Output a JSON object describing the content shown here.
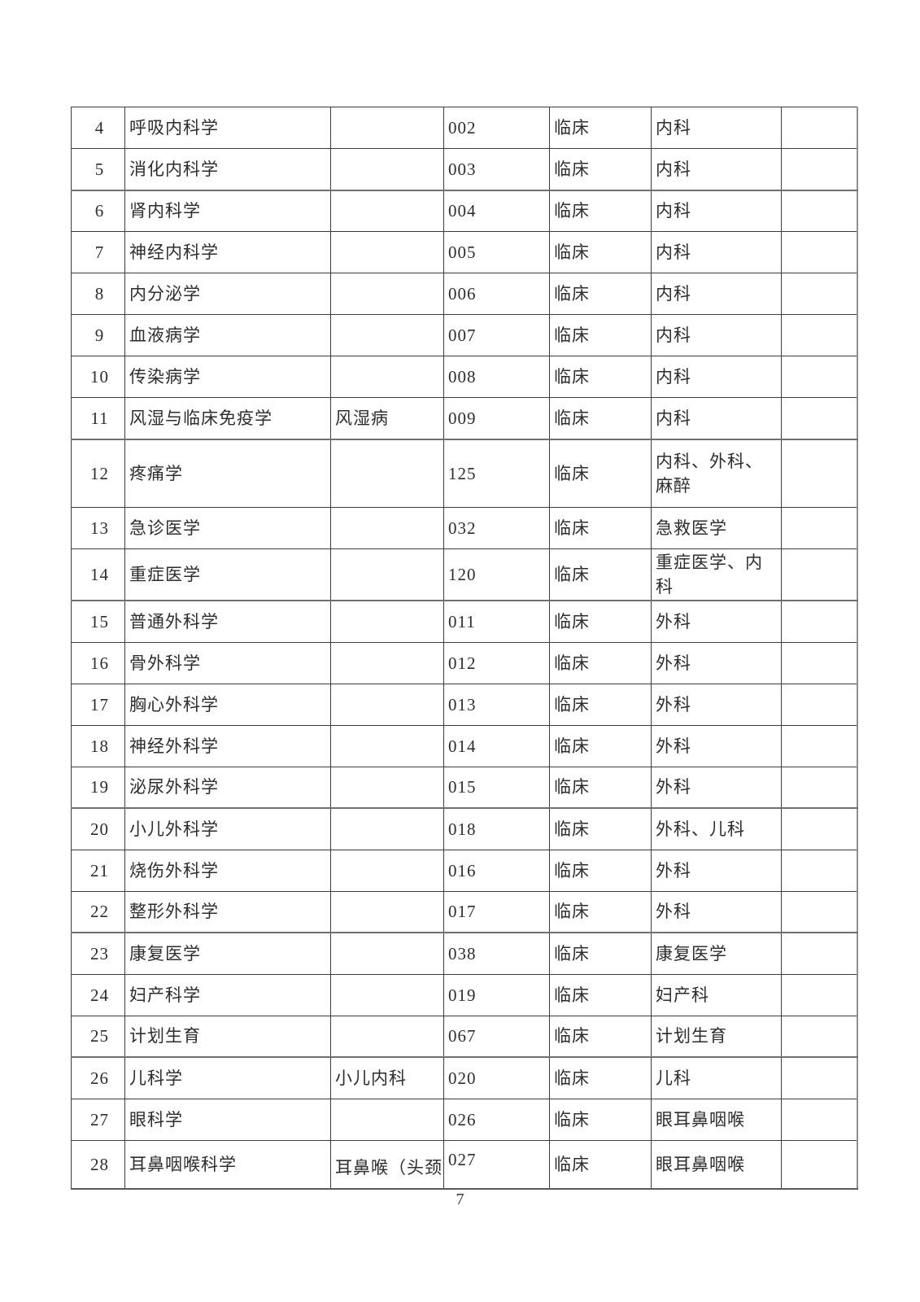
{
  "document": {
    "page_number": "7",
    "ink_color": "#2d2d2d",
    "grid_color": "#3c3c3c"
  },
  "table": {
    "rows": [
      {
        "no": "4",
        "name": "呼吸内科学",
        "alt_name": "",
        "code": "002",
        "category": "临床",
        "department": "内科",
        "note": ""
      },
      {
        "no": "5",
        "name": "消化内科学",
        "alt_name": "",
        "code": "003",
        "category": "临床",
        "department": "内科",
        "note": ""
      },
      {
        "no": "6",
        "name": "肾内科学",
        "alt_name": "",
        "code": "004",
        "category": "临床",
        "department": "内科",
        "note": ""
      },
      {
        "no": "7",
        "name": "神经内科学",
        "alt_name": "",
        "code": "005",
        "category": "临床",
        "department": "内科",
        "note": ""
      },
      {
        "no": "8",
        "name": "内分泌学",
        "alt_name": "",
        "code": "006",
        "category": "临床",
        "department": "内科",
        "note": ""
      },
      {
        "no": "9",
        "name": "血液病学",
        "alt_name": "",
        "code": "007",
        "category": "临床",
        "department": "内科",
        "note": ""
      },
      {
        "no": "10",
        "name": "传染病学",
        "alt_name": "",
        "code": "008",
        "category": "临床",
        "department": "内科",
        "note": ""
      },
      {
        "no": "11",
        "name": "风湿与临床免疫学",
        "alt_name": "风湿病",
        "code": "009",
        "category": "临床",
        "department": "内科",
        "note": ""
      },
      {
        "no": "12",
        "name": "疼痛学",
        "alt_name": "",
        "code": "125",
        "category": "临床",
        "department": "内科、外科、麻醉",
        "note": ""
      },
      {
        "no": "13",
        "name": "急诊医学",
        "alt_name": "",
        "code": "032",
        "category": "临床",
        "department": "急救医学",
        "note": ""
      },
      {
        "no": "14",
        "name": "重症医学",
        "alt_name": "",
        "code": "120",
        "category": "临床",
        "department": "重症医学、内科",
        "note": ""
      },
      {
        "no": "15",
        "name": "普通外科学",
        "alt_name": "",
        "code": "011",
        "category": "临床",
        "department": "外科",
        "note": ""
      },
      {
        "no": "16",
        "name": "骨外科学",
        "alt_name": "",
        "code": "012",
        "category": "临床",
        "department": "外科",
        "note": ""
      },
      {
        "no": "17",
        "name": "胸心外科学",
        "alt_name": "",
        "code": "013",
        "category": "临床",
        "department": "外科",
        "note": ""
      },
      {
        "no": "18",
        "name": "神经外科学",
        "alt_name": "",
        "code": "014",
        "category": "临床",
        "department": "外科",
        "note": ""
      },
      {
        "no": "19",
        "name": "泌尿外科学",
        "alt_name": "",
        "code": "015",
        "category": "临床",
        "department": "外科",
        "note": ""
      },
      {
        "no": "20",
        "name": "小儿外科学",
        "alt_name": "",
        "code": "018",
        "category": "临床",
        "department": "外科、儿科",
        "note": ""
      },
      {
        "no": "21",
        "name": "烧伤外科学",
        "alt_name": "",
        "code": "016",
        "category": "临床",
        "department": "外科",
        "note": ""
      },
      {
        "no": "22",
        "name": "整形外科学",
        "alt_name": "",
        "code": "017",
        "category": "临床",
        "department": "外科",
        "note": ""
      },
      {
        "no": "23",
        "name": "康复医学",
        "alt_name": "",
        "code": "038",
        "category": "临床",
        "department": "康复医学",
        "note": ""
      },
      {
        "no": "24",
        "name": "妇产科学",
        "alt_name": "",
        "code": "019",
        "category": "临床",
        "department": "妇产科",
        "note": ""
      },
      {
        "no": "25",
        "name": "计划生育",
        "alt_name": "",
        "code": "067",
        "category": "临床",
        "department": "计划生育",
        "note": ""
      },
      {
        "no": "26",
        "name": "儿科学",
        "alt_name": "小儿内科",
        "code": "020",
        "category": "临床",
        "department": "儿科",
        "note": ""
      },
      {
        "no": "27",
        "name": "眼科学",
        "alt_name": "",
        "code": "026",
        "category": "临床",
        "department": "眼耳鼻咽喉",
        "note": ""
      },
      {
        "no": "28",
        "name": "耳鼻咽喉科学",
        "alt_name": "耳鼻喉（头颈",
        "code": "027",
        "category": "临床",
        "department": "眼耳鼻咽喉",
        "note": ""
      }
    ]
  }
}
